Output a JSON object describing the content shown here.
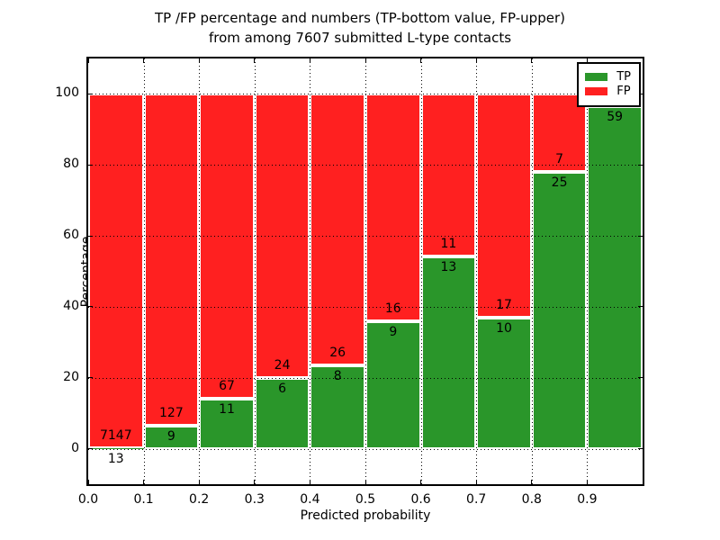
{
  "chart_data": {
    "type": "bar",
    "stacked": true,
    "title_line1": "TP /FP percentage and numbers (TP-bottom value, FP-upper)",
    "title_line2": "from among 7607 submitted L-type contacts",
    "xlabel": "Predicted probability",
    "ylabel": "Percentage",
    "xlim": [
      0.0,
      1.0
    ],
    "ylim": [
      -10,
      110
    ],
    "grid": true,
    "legend_position": "upper right",
    "y_ticks": [
      0,
      20,
      40,
      60,
      80,
      100
    ],
    "x_ticks": [
      "0.0",
      "0.1",
      "0.2",
      "0.3",
      "0.4",
      "0.5",
      "0.6",
      "0.7",
      "0.8",
      "0.9"
    ],
    "colors": {
      "tp": "#2a962a",
      "fp": "#ff2020",
      "grid": "#000000",
      "text": "#000000"
    },
    "series": [
      {
        "name": "TP",
        "color": "#2a962a",
        "counts": [
          13,
          9,
          11,
          6,
          8,
          9,
          13,
          10,
          25,
          59
        ]
      },
      {
        "name": "FP",
        "color": "#ff2020",
        "counts": [
          7147,
          127,
          67,
          24,
          26,
          16,
          11,
          17,
          7,
          null
        ]
      }
    ],
    "bins_x0": [
      0.0,
      0.1,
      0.2,
      0.3,
      0.4,
      0.5,
      0.6,
      0.7,
      0.8,
      0.9
    ],
    "bin_width": 0.1,
    "tp_pct": [
      0.2,
      6.6,
      14.1,
      20.0,
      23.5,
      36.0,
      54.2,
      37.0,
      78.1,
      96.5
    ],
    "bar_total_pct": 100
  }
}
